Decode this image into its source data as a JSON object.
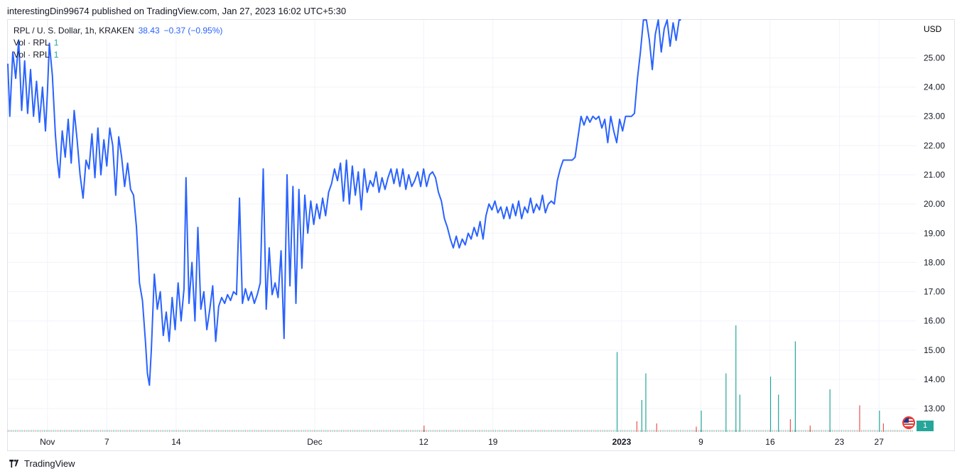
{
  "header": {
    "publisher": "interestingDin99674 published on TradingView.com, Jan 27, 2023 16:02 UTC+5:30"
  },
  "legend": {
    "symbol": "RPL / U. S. Dollar, 1h, KRAKEN",
    "last": "38.43",
    "change": "−0.37 (−0.95%)",
    "vol_rows": [
      {
        "label": "Vol · RPL",
        "value": "1"
      },
      {
        "label": "Vol · RPL",
        "value": "1"
      }
    ]
  },
  "footer": {
    "brand": "TradingView"
  },
  "volume_badge": "1",
  "colors": {
    "line": "#2962ff",
    "up": "#26a69a",
    "down": "#ef5350",
    "grid": "#f0f3fa",
    "axis_text": "#131722"
  },
  "chart_data": {
    "type": "line",
    "title": "RPL / U. S. Dollar, 1h, KRAKEN",
    "y_axis_label": "USD",
    "ylim": [
      12.2,
      26.3
    ],
    "y_ticks": [
      13.0,
      14.0,
      15.0,
      16.0,
      17.0,
      18.0,
      19.0,
      20.0,
      21.0,
      22.0,
      23.0,
      24.0,
      25.0
    ],
    "x_ticks": [
      {
        "label": "Nov",
        "x": 3,
        "bold": false
      },
      {
        "label": "7",
        "x": 9,
        "bold": false
      },
      {
        "label": "14",
        "x": 16,
        "bold": false
      },
      {
        "label": "Dec",
        "x": 30,
        "bold": false
      },
      {
        "label": "12",
        "x": 41,
        "bold": false
      },
      {
        "label": "19",
        "x": 48,
        "bold": false
      },
      {
        "label": "2023",
        "x": 61,
        "bold": true
      },
      {
        "label": "9",
        "x": 69,
        "bold": false
      },
      {
        "label": "16",
        "x": 76,
        "bold": false
      },
      {
        "label": "23",
        "x": 83,
        "bold": false
      },
      {
        "label": "27",
        "x": 87,
        "bold": false
      }
    ],
    "xlim": [
      -1,
      90.5
    ],
    "series": [
      {
        "values": [
          [
            -1,
            24.8
          ],
          [
            -0.8,
            23.0
          ],
          [
            -0.5,
            25.2
          ],
          [
            -0.2,
            24.3
          ],
          [
            0.1,
            25.6
          ],
          [
            0.4,
            23.2
          ],
          [
            0.7,
            24.9
          ],
          [
            1.0,
            23.1
          ],
          [
            1.3,
            24.6
          ],
          [
            1.6,
            23.0
          ],
          [
            1.9,
            24.2
          ],
          [
            2.2,
            22.8
          ],
          [
            2.5,
            24.0
          ],
          [
            2.8,
            22.5
          ],
          [
            3.0,
            23.8
          ],
          [
            3.2,
            25.5
          ],
          [
            3.5,
            24.4
          ],
          [
            3.8,
            22.4
          ],
          [
            4.0,
            21.5
          ],
          [
            4.2,
            20.9
          ],
          [
            4.5,
            22.5
          ],
          [
            4.8,
            21.6
          ],
          [
            5.1,
            22.9
          ],
          [
            5.4,
            21.4
          ],
          [
            5.7,
            23.2
          ],
          [
            6.0,
            22.2
          ],
          [
            6.3,
            21.0
          ],
          [
            6.6,
            20.2
          ],
          [
            6.9,
            21.5
          ],
          [
            7.2,
            21.2
          ],
          [
            7.5,
            22.4
          ],
          [
            7.8,
            20.9
          ],
          [
            8.1,
            22.6
          ],
          [
            8.4,
            21.0
          ],
          [
            8.7,
            22.2
          ],
          [
            9.0,
            21.3
          ],
          [
            9.3,
            22.6
          ],
          [
            9.6,
            22.0
          ],
          [
            9.9,
            20.3
          ],
          [
            10.2,
            22.3
          ],
          [
            10.5,
            21.6
          ],
          [
            10.8,
            20.6
          ],
          [
            11.1,
            21.4
          ],
          [
            11.4,
            20.5
          ],
          [
            11.7,
            20.3
          ],
          [
            12.0,
            19.2
          ],
          [
            12.3,
            17.3
          ],
          [
            12.6,
            16.7
          ],
          [
            12.9,
            15.3
          ],
          [
            13.1,
            14.2
          ],
          [
            13.3,
            13.8
          ],
          [
            13.5,
            15.0
          ],
          [
            13.8,
            17.6
          ],
          [
            14.1,
            16.4
          ],
          [
            14.4,
            17.0
          ],
          [
            14.7,
            15.5
          ],
          [
            15.0,
            16.3
          ],
          [
            15.3,
            15.3
          ],
          [
            15.6,
            16.8
          ],
          [
            15.9,
            15.7
          ],
          [
            16.2,
            17.3
          ],
          [
            16.5,
            16.0
          ],
          [
            16.8,
            17.1
          ],
          [
            17.0,
            20.9
          ],
          [
            17.3,
            16.6
          ],
          [
            17.6,
            18.0
          ],
          [
            17.9,
            16.0
          ],
          [
            18.2,
            19.2
          ],
          [
            18.5,
            16.4
          ],
          [
            18.8,
            17.0
          ],
          [
            19.1,
            15.7
          ],
          [
            19.4,
            16.4
          ],
          [
            19.7,
            17.2
          ],
          [
            20.0,
            15.3
          ],
          [
            20.3,
            16.5
          ],
          [
            20.6,
            16.8
          ],
          [
            20.9,
            16.6
          ],
          [
            21.2,
            16.9
          ],
          [
            21.5,
            16.7
          ],
          [
            21.8,
            17.0
          ],
          [
            22.1,
            16.9
          ],
          [
            22.4,
            20.2
          ],
          [
            22.7,
            16.6
          ],
          [
            23.0,
            17.1
          ],
          [
            23.3,
            16.7
          ],
          [
            23.6,
            17.0
          ],
          [
            23.9,
            16.6
          ],
          [
            24.2,
            16.9
          ],
          [
            24.5,
            17.3
          ],
          [
            24.8,
            21.2
          ],
          [
            25.1,
            16.4
          ],
          [
            25.4,
            18.5
          ],
          [
            25.7,
            16.9
          ],
          [
            26.0,
            17.3
          ],
          [
            26.3,
            16.8
          ],
          [
            26.6,
            18.4
          ],
          [
            26.9,
            15.4
          ],
          [
            27.2,
            21.0
          ],
          [
            27.5,
            17.2
          ],
          [
            27.8,
            20.6
          ],
          [
            28.1,
            16.6
          ],
          [
            28.4,
            20.5
          ],
          [
            28.7,
            17.8
          ],
          [
            29.0,
            20.3
          ],
          [
            29.3,
            19.0
          ],
          [
            29.6,
            20.1
          ],
          [
            29.9,
            19.3
          ],
          [
            30.2,
            20.0
          ],
          [
            30.5,
            19.5
          ],
          [
            30.8,
            20.2
          ],
          [
            31.1,
            19.6
          ],
          [
            31.4,
            20.4
          ],
          [
            31.7,
            20.7
          ],
          [
            32.0,
            21.2
          ],
          [
            32.3,
            20.8
          ],
          [
            32.6,
            21.4
          ],
          [
            32.9,
            20.1
          ],
          [
            33.2,
            21.5
          ],
          [
            33.5,
            20.0
          ],
          [
            33.8,
            21.3
          ],
          [
            34.1,
            20.3
          ],
          [
            34.4,
            21.1
          ],
          [
            34.7,
            19.8
          ],
          [
            35.0,
            21.2
          ],
          [
            35.3,
            20.4
          ],
          [
            35.6,
            20.8
          ],
          [
            35.9,
            20.6
          ],
          [
            36.2,
            21.1
          ],
          [
            36.5,
            20.4
          ],
          [
            36.8,
            20.9
          ],
          [
            37.1,
            20.5
          ],
          [
            37.4,
            20.9
          ],
          [
            37.7,
            21.2
          ],
          [
            38.0,
            20.7
          ],
          [
            38.3,
            21.2
          ],
          [
            38.6,
            20.6
          ],
          [
            38.9,
            21.2
          ],
          [
            39.2,
            20.5
          ],
          [
            39.5,
            21.0
          ],
          [
            39.8,
            20.6
          ],
          [
            40.1,
            20.8
          ],
          [
            40.4,
            21.1
          ],
          [
            40.7,
            20.6
          ],
          [
            41.0,
            21.2
          ],
          [
            41.3,
            20.6
          ],
          [
            41.6,
            21.0
          ],
          [
            41.9,
            21.1
          ],
          [
            42.2,
            20.9
          ],
          [
            42.5,
            20.4
          ],
          [
            42.8,
            20.1
          ],
          [
            43.1,
            19.5
          ],
          [
            43.4,
            19.2
          ],
          [
            43.7,
            18.8
          ],
          [
            44.0,
            18.5
          ],
          [
            44.3,
            18.9
          ],
          [
            44.6,
            18.5
          ],
          [
            44.9,
            18.8
          ],
          [
            45.2,
            18.6
          ],
          [
            45.5,
            19.0
          ],
          [
            45.8,
            18.8
          ],
          [
            46.1,
            19.2
          ],
          [
            46.4,
            18.9
          ],
          [
            46.7,
            19.4
          ],
          [
            47.0,
            18.8
          ],
          [
            47.3,
            19.6
          ],
          [
            47.6,
            20.0
          ],
          [
            47.9,
            19.8
          ],
          [
            48.2,
            20.1
          ],
          [
            48.5,
            19.7
          ],
          [
            48.8,
            19.9
          ],
          [
            49.1,
            19.5
          ],
          [
            49.4,
            19.9
          ],
          [
            49.7,
            19.5
          ],
          [
            50.0,
            20.0
          ],
          [
            50.3,
            19.6
          ],
          [
            50.6,
            20.1
          ],
          [
            50.9,
            19.5
          ],
          [
            51.2,
            19.9
          ],
          [
            51.5,
            19.7
          ],
          [
            51.8,
            20.2
          ],
          [
            52.1,
            19.7
          ],
          [
            52.4,
            20.0
          ],
          [
            52.7,
            19.8
          ],
          [
            53.0,
            20.3
          ],
          [
            53.3,
            19.7
          ],
          [
            53.6,
            20.0
          ],
          [
            53.9,
            20.1
          ],
          [
            54.2,
            20.0
          ],
          [
            54.5,
            20.8
          ],
          [
            54.8,
            21.2
          ],
          [
            55.1,
            21.5
          ],
          [
            55.4,
            21.5
          ],
          [
            55.7,
            21.5
          ],
          [
            56.0,
            21.5
          ],
          [
            56.3,
            21.6
          ],
          [
            56.6,
            22.3
          ],
          [
            56.9,
            23.0
          ],
          [
            57.2,
            22.7
          ],
          [
            57.5,
            23.0
          ],
          [
            57.8,
            22.8
          ],
          [
            58.1,
            23.0
          ],
          [
            58.4,
            22.9
          ],
          [
            58.7,
            23.0
          ],
          [
            59.0,
            22.6
          ],
          [
            59.3,
            22.9
          ],
          [
            59.6,
            22.1
          ],
          [
            59.9,
            23.0
          ],
          [
            60.2,
            22.5
          ],
          [
            60.5,
            22.1
          ],
          [
            60.8,
            22.9
          ],
          [
            61.1,
            22.5
          ],
          [
            61.4,
            23.0
          ],
          [
            61.7,
            23.0
          ],
          [
            62.0,
            23.0
          ],
          [
            62.3,
            23.1
          ],
          [
            62.6,
            24.3
          ],
          [
            62.9,
            25.2
          ],
          [
            63.2,
            26.3
          ],
          [
            63.5,
            26.3
          ],
          [
            63.8,
            25.6
          ],
          [
            64.1,
            24.6
          ],
          [
            64.4,
            25.8
          ],
          [
            64.7,
            26.3
          ],
          [
            65.0,
            25.2
          ],
          [
            65.3,
            26.0
          ],
          [
            65.6,
            26.3
          ],
          [
            65.9,
            25.4
          ],
          [
            66.2,
            26.2
          ],
          [
            66.5,
            25.6
          ],
          [
            66.8,
            26.3
          ],
          [
            67.0,
            26.3
          ]
        ]
      }
    ],
    "volume": {
      "up": [
        [
          60.5,
          0.75
        ],
        [
          63.0,
          0.3
        ],
        [
          63.4,
          0.55
        ],
        [
          69.0,
          0.2
        ],
        [
          71.5,
          0.55
        ],
        [
          72.5,
          1.0
        ],
        [
          72.9,
          0.35
        ],
        [
          76.0,
          0.52
        ],
        [
          76.8,
          0.35
        ],
        [
          78.5,
          0.85
        ],
        [
          82.0,
          0.4
        ],
        [
          87.0,
          0.2
        ]
      ],
      "down": [
        [
          41.0,
          0.06
        ],
        [
          62.5,
          0.1
        ],
        [
          64.5,
          0.08
        ],
        [
          68.5,
          0.05
        ],
        [
          78.0,
          0.12
        ],
        [
          85.0,
          0.25
        ],
        [
          87.4,
          0.08
        ],
        [
          80.0,
          0.06
        ]
      ]
    }
  }
}
